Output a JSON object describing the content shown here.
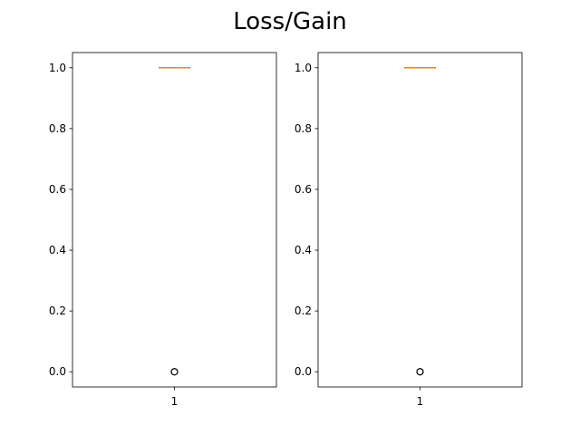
{
  "figure": {
    "title": "Loss/Gain"
  },
  "chart_data": [
    {
      "type": "box",
      "title": "",
      "xlabel": "",
      "ylabel": "",
      "categories": [
        "1"
      ],
      "ylim": [
        -0.05,
        1.05
      ],
      "yticks": [
        "0.0",
        "0.2",
        "0.4",
        "0.6",
        "0.8",
        "1.0"
      ],
      "boxes": [
        {
          "label": "1",
          "q1": 1.0,
          "median": 1.0,
          "q3": 1.0,
          "whisker_low": 1.0,
          "whisker_high": 1.0,
          "outliers": [
            0.0,
            0.0,
            0.0
          ]
        }
      ],
      "median_color": "#ff7f0e",
      "box_color": "#000000"
    },
    {
      "type": "box",
      "title": "",
      "xlabel": "",
      "ylabel": "",
      "categories": [
        "1"
      ],
      "ylim": [
        -0.05,
        1.05
      ],
      "yticks": [
        "0.0",
        "0.2",
        "0.4",
        "0.6",
        "0.8",
        "1.0"
      ],
      "boxes": [
        {
          "label": "1",
          "q1": 1.0,
          "median": 1.0,
          "q3": 1.0,
          "whisker_low": 1.0,
          "whisker_high": 1.0,
          "outliers": [
            0.0,
            0.0,
            0.0
          ]
        }
      ],
      "median_color": "#ff7f0e",
      "box_color": "#000000"
    }
  ]
}
